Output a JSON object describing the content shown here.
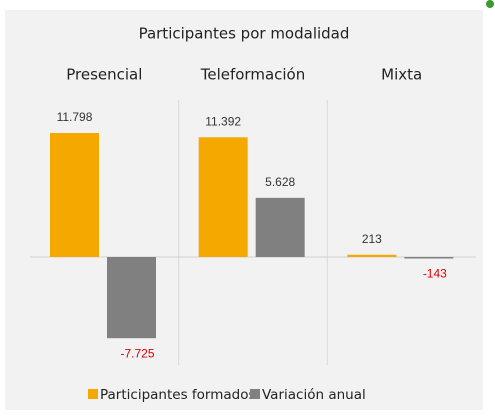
{
  "chart_data": {
    "type": "bar",
    "title": "Participantes por modalidad",
    "categories": [
      "Presencial",
      "Teleformación",
      "Mixta"
    ],
    "series": [
      {
        "name": "Participantes formados",
        "color": "#f5a800",
        "values": [
          11798,
          11392,
          213
        ],
        "value_labels": [
          "11.798",
          "11.392",
          "213"
        ]
      },
      {
        "name": "Variación anual",
        "color": "#808080",
        "values": [
          -7725,
          5628,
          -143
        ],
        "value_labels": [
          "-7.725",
          "5.628",
          "-143"
        ]
      }
    ]
  }
}
